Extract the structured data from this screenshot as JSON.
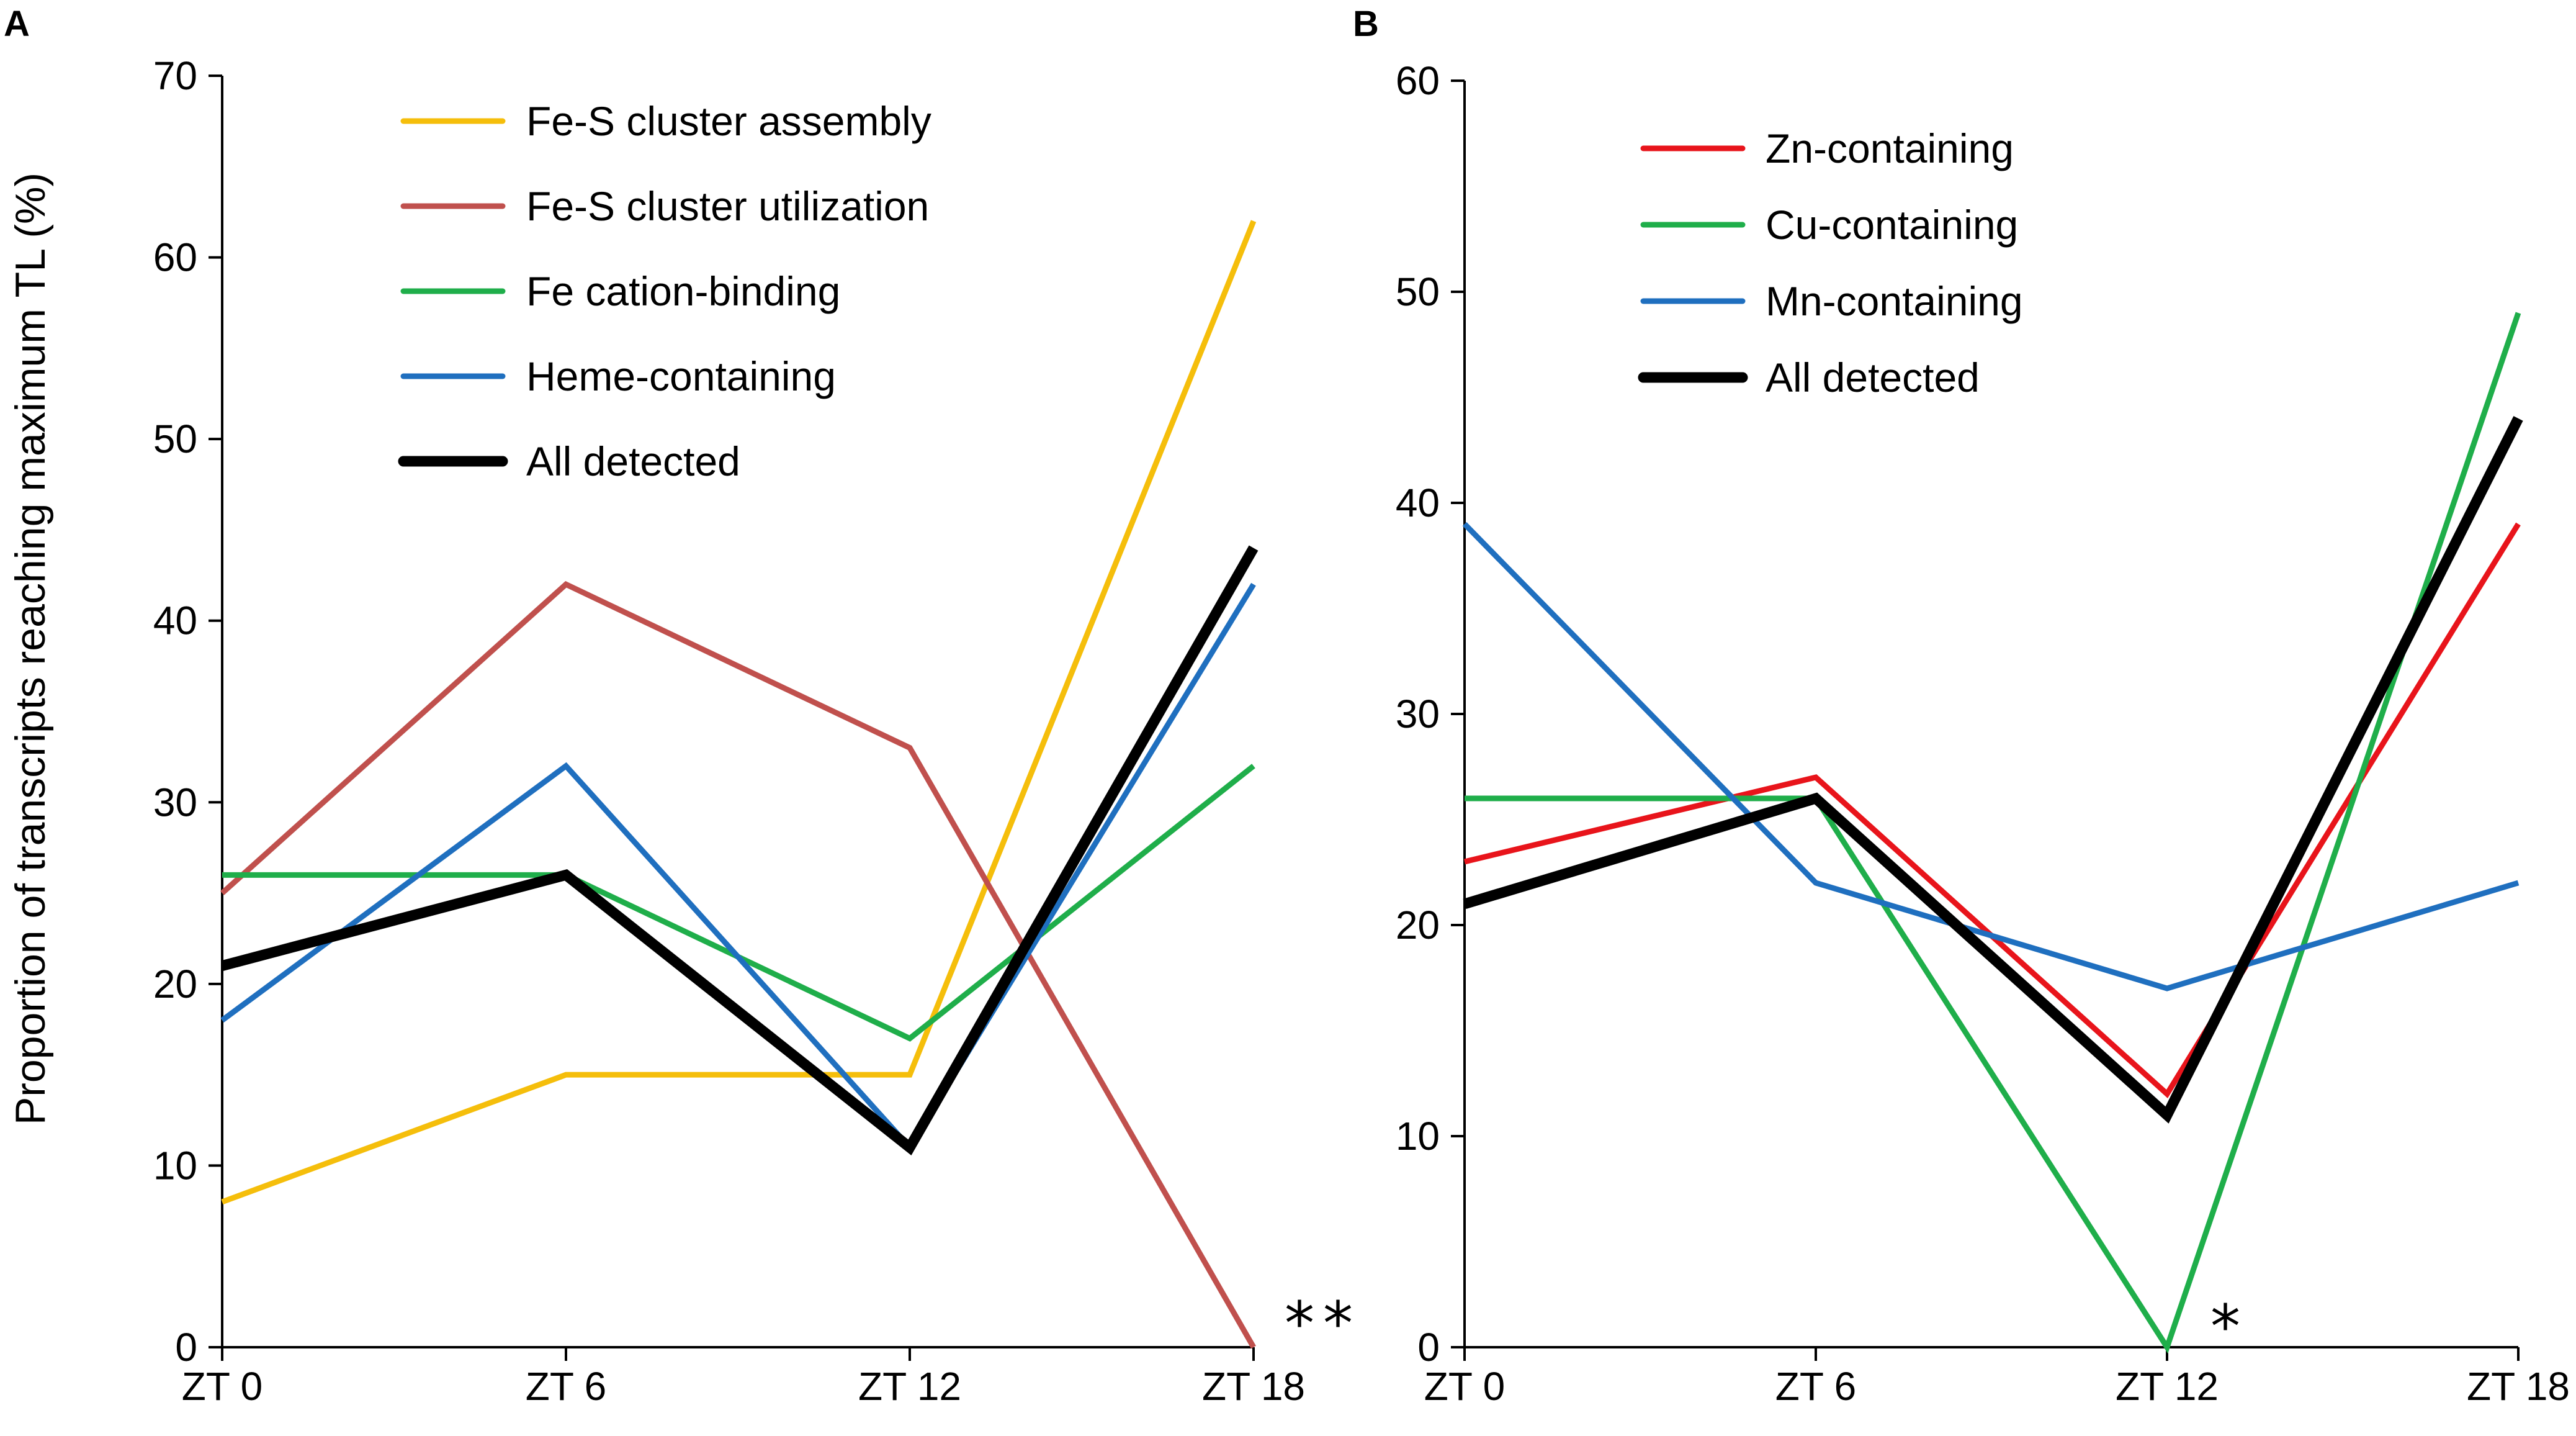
{
  "chart_data": [
    {
      "type": "line",
      "panel": "A",
      "ylabel": "Proportion of transcripts reaching maximum TL (%)",
      "xlabel": "",
      "categories": [
        "ZT 0",
        "ZT 6",
        "ZT 12",
        "ZT 18"
      ],
      "ylim": [
        0,
        70
      ],
      "yticks": [
        0,
        10,
        20,
        30,
        40,
        50,
        60,
        70
      ],
      "legend_position": "top-left",
      "series": [
        {
          "name": "Fe-S cluster assembly",
          "color": "#F5BE0B",
          "values": [
            8,
            15,
            15,
            62
          ]
        },
        {
          "name": "Fe-S cluster utilization",
          "color": "#C0504D",
          "values": [
            25,
            42,
            33,
            0
          ]
        },
        {
          "name": "Fe cation-binding",
          "color": "#1FAE4A",
          "values": [
            26,
            26,
            17,
            32
          ]
        },
        {
          "name": "Heme-containing",
          "color": "#1F6FBF",
          "values": [
            18,
            32,
            11,
            42
          ]
        },
        {
          "name": "All detected",
          "color": "#000000",
          "values": [
            21,
            26,
            11,
            44
          ],
          "bold": true
        }
      ],
      "annotation": {
        "text": "**",
        "category": "ZT 18",
        "y": 0
      }
    },
    {
      "type": "line",
      "panel": "B",
      "ylabel": "",
      "xlabel": "",
      "categories": [
        "ZT 0",
        "ZT 6",
        "ZT 12",
        "ZT 18"
      ],
      "ylim": [
        0,
        60
      ],
      "yticks": [
        0,
        10,
        20,
        30,
        40,
        50,
        60
      ],
      "legend_position": "top-left",
      "series": [
        {
          "name": "Zn-containing",
          "color": "#E8141B",
          "values": [
            23,
            27,
            12,
            39
          ]
        },
        {
          "name": "Cu-containing",
          "color": "#1FAE4A",
          "values": [
            26,
            26,
            0,
            49
          ]
        },
        {
          "name": "Mn-containing",
          "color": "#1F6FBF",
          "values": [
            39,
            22,
            17,
            22
          ]
        },
        {
          "name": "All detected",
          "color": "#000000",
          "values": [
            21,
            26,
            11,
            44
          ],
          "bold": true
        }
      ],
      "annotation": {
        "text": "*",
        "category": "ZT 12",
        "y": 0
      }
    }
  ]
}
